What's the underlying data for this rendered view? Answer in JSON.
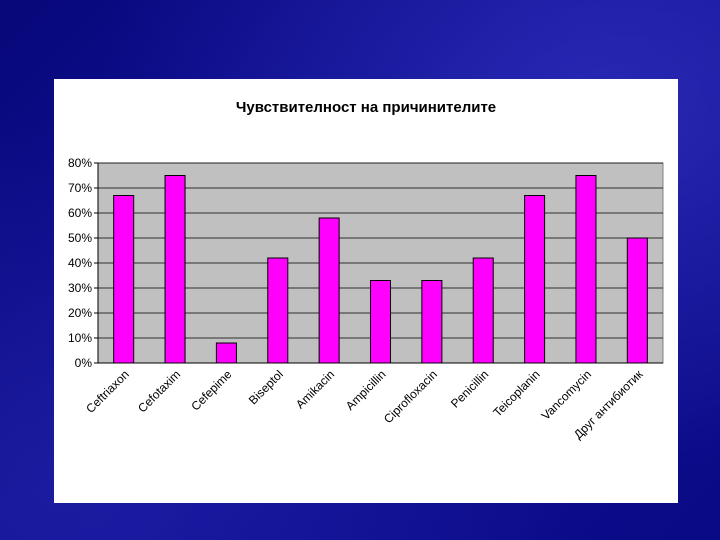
{
  "chart_data": {
    "type": "bar",
    "title": "Чувствителност на причинителите",
    "categories": [
      "Ceftriaxon",
      "Cefotaxim",
      "Cefepime",
      "Biseptol",
      "Amikacin",
      "Ampicillin",
      "Ciprofloxacin",
      "Penicillin",
      "Teicoplanin",
      "Vancomycin",
      "Друг антибиотик"
    ],
    "values": [
      0.67,
      0.75,
      0.08,
      0.42,
      0.58,
      0.33,
      0.33,
      0.42,
      0.67,
      0.75,
      0.5
    ],
    "ylim": [
      0,
      0.8
    ],
    "yticks": [
      "0%",
      "10%",
      "20%",
      "30%",
      "40%",
      "50%",
      "60%",
      "70%",
      "80%"
    ],
    "grid": true,
    "legend": "none",
    "bar_color": "#ff00ff",
    "plot_bg": "#c0c0c0"
  }
}
